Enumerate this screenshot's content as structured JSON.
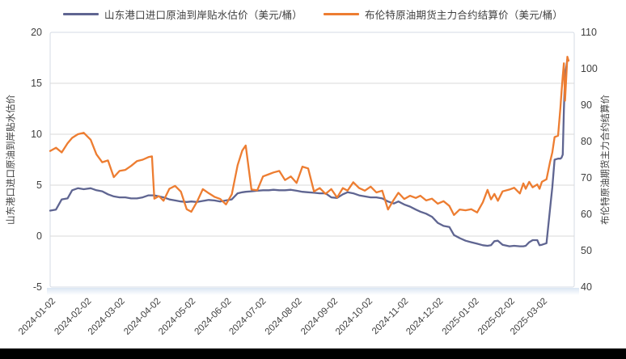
{
  "colors": {
    "discount_line": "#5F6591",
    "brent_line": "#ED7D31",
    "grid": "#D9D9D9",
    "plot_border": "#D5DBE4",
    "tick_text": "#3F3F3F",
    "axis_title_text": "#3F3F3F",
    "bottom_bar": "#000000",
    "plot_shadow": "#AFC8E4"
  },
  "chart_data": {
    "type": "line",
    "title": "",
    "grid": true,
    "legend_position": "top",
    "left_axis": {
      "label": "山东港口进口原油到岸贴水估价",
      "ticks": [
        20,
        15,
        10,
        5,
        0,
        -5
      ],
      "range": [
        -5,
        20
      ]
    },
    "right_axis": {
      "label": "布伦特原油期货主力合约结算价",
      "ticks": [
        110,
        100,
        90,
        80,
        70,
        60,
        50,
        40
      ],
      "range": [
        40,
        110
      ]
    },
    "x_tick_labels": [
      "2024-01-02",
      "2024-02-02",
      "2024-03-02",
      "2024-04-02",
      "2024-05-02",
      "2024-06-02",
      "2024-07-02",
      "2024-08-02",
      "2024-09-02",
      "2024-10-02",
      "2024-11-02",
      "2024-12-02",
      "2025-01-02",
      "2025-02-02",
      "2025-03-02"
    ],
    "x": [
      "2024-01-02",
      "2024-01-07",
      "2024-01-12",
      "2024-01-17",
      "2024-01-21",
      "2024-01-26",
      "2024-01-31",
      "2024-02-06",
      "2024-02-11",
      "2024-02-16",
      "2024-02-21",
      "2024-02-26",
      "2024-03-02",
      "2024-03-07",
      "2024-03-12",
      "2024-03-17",
      "2024-03-22",
      "2024-03-27",
      "2024-03-30",
      "2024-04-01",
      "2024-04-05",
      "2024-04-09",
      "2024-04-14",
      "2024-04-19",
      "2024-04-24",
      "2024-04-29",
      "2024-05-03",
      "2024-05-08",
      "2024-05-13",
      "2024-05-18",
      "2024-05-23",
      "2024-05-28",
      "2024-06-02",
      "2024-06-07",
      "2024-06-12",
      "2024-06-16",
      "2024-06-19",
      "2024-06-24",
      "2024-06-29",
      "2024-07-04",
      "2024-07-09",
      "2024-07-13",
      "2024-07-18",
      "2024-07-23",
      "2024-07-28",
      "2024-08-02",
      "2024-08-07",
      "2024-08-12",
      "2024-08-17",
      "2024-08-22",
      "2024-08-27",
      "2024-09-01",
      "2024-09-06",
      "2024-09-11",
      "2024-09-15",
      "2024-09-20",
      "2024-09-25",
      "2024-09-30",
      "2024-10-05",
      "2024-10-10",
      "2024-10-15",
      "2024-10-20",
      "2024-10-25",
      "2024-10-29",
      "2024-11-03",
      "2024-11-08",
      "2024-11-13",
      "2024-11-17",
      "2024-11-22",
      "2024-11-27",
      "2024-12-02",
      "2024-12-07",
      "2024-12-12",
      "2024-12-16",
      "2024-12-21",
      "2024-12-26",
      "2024-12-31",
      "2025-01-05",
      "2025-01-10",
      "2025-01-14",
      "2025-01-17",
      "2025-01-20",
      "2025-01-23",
      "2025-01-27",
      "2025-02-02",
      "2025-02-06",
      "2025-02-11",
      "2025-02-14",
      "2025-02-16",
      "2025-02-19",
      "2025-02-22",
      "2025-02-26",
      "2025-02-28",
      "2025-03-02",
      "2025-03-06",
      "2025-03-09",
      "2025-03-11",
      "2025-03-13",
      "2025-03-16",
      "2025-03-18",
      "2025-03-19",
      "2025-03-20",
      "2025-03-21",
      "2025-03-22",
      "2025-03-24",
      "2025-03-25"
    ],
    "series": [
      {
        "name": "山东港口进口原油到岸贴水估价（美元/桶）",
        "axis": "left",
        "color": "#5F6591",
        "values": [
          2.5,
          2.6,
          3.6,
          3.7,
          4.5,
          4.7,
          4.6,
          4.7,
          4.5,
          4.4,
          4.1,
          3.9,
          3.8,
          3.8,
          3.7,
          3.7,
          3.8,
          4.0,
          4.0,
          4.0,
          3.9,
          3.8,
          3.6,
          3.5,
          3.4,
          3.35,
          3.4,
          3.35,
          3.45,
          3.55,
          3.5,
          3.4,
          3.5,
          3.6,
          4.2,
          4.3,
          4.35,
          4.4,
          4.45,
          4.5,
          4.5,
          4.55,
          4.5,
          4.5,
          4.55,
          4.45,
          4.35,
          4.3,
          4.25,
          4.2,
          4.2,
          3.8,
          3.75,
          4.1,
          4.3,
          4.2,
          4.0,
          3.9,
          3.8,
          3.8,
          3.7,
          3.4,
          3.2,
          3.4,
          3.1,
          2.9,
          2.6,
          2.4,
          2.2,
          1.9,
          1.3,
          1.0,
          0.9,
          0.1,
          -0.2,
          -0.45,
          -0.6,
          -0.75,
          -0.9,
          -0.95,
          -0.9,
          -0.5,
          -0.45,
          -0.85,
          -1.0,
          -0.95,
          -1.0,
          -1.0,
          -0.95,
          -0.6,
          -0.4,
          -0.4,
          -0.9,
          -0.85,
          -0.7,
          2.6,
          4.8,
          7.5,
          7.6,
          7.6,
          7.7,
          8.0,
          12.4,
          15.6,
          17.4,
          17.25
        ]
      },
      {
        "name": "布伦特原油期货主力合约结算价（美元/桶）",
        "axis": "right",
        "color": "#ED7D31",
        "values": [
          77.4,
          78.3,
          77.0,
          79.5,
          81.0,
          82.0,
          82.4,
          80.5,
          76.5,
          74.3,
          74.8,
          70.2,
          71.9,
          72.2,
          73.3,
          74.6,
          75.0,
          75.7,
          75.9,
          64.3,
          65.0,
          63.7,
          67.0,
          67.8,
          66.2,
          61.4,
          60.7,
          63.5,
          66.9,
          65.8,
          64.8,
          64.2,
          62.7,
          65.5,
          73.5,
          77.5,
          78.9,
          66.8,
          66.6,
          70.4,
          71.0,
          71.5,
          71.9,
          69.4,
          70.4,
          68.6,
          73.1,
          72.6,
          66.3,
          67.2,
          65.6,
          66.9,
          64.6,
          67.2,
          66.5,
          68.8,
          67.2,
          66.5,
          67.6,
          66.0,
          66.5,
          61.3,
          64.0,
          65.9,
          64.2,
          65.1,
          64.5,
          65.1,
          63.8,
          64.3,
          62.9,
          63.6,
          62.3,
          59.8,
          61.3,
          61.1,
          61.4,
          60.5,
          63.3,
          66.7,
          64.1,
          65.6,
          63.7,
          66.3,
          66.8,
          67.3,
          65.7,
          68.5,
          67.0,
          68.9,
          67.4,
          68.2,
          67.0,
          68.9,
          69.6,
          74.3,
          77.0,
          81.2,
          81.6,
          89.3,
          93.7,
          98.0,
          101.5,
          91.2,
          103.3,
          102.2
        ]
      }
    ]
  }
}
